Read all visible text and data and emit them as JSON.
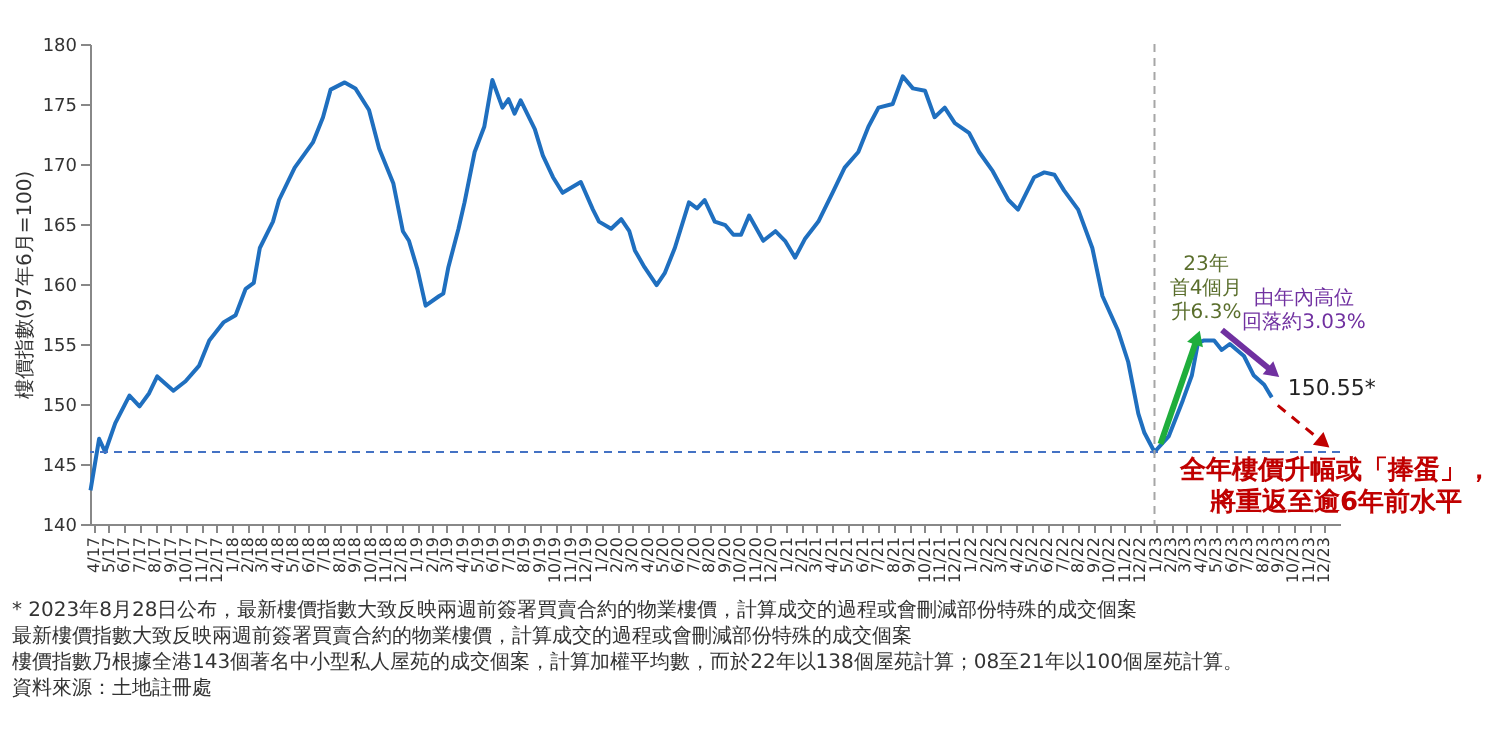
{
  "chart_data": {
    "type": "line",
    "ylabel": "樓價指數(97年6月=100)",
    "x": [
      "2017-03-26",
      "2017-04-12",
      "2017-04-24",
      "2017-05-14",
      "2017-06-11",
      "2017-07-01",
      "2017-07-20",
      "2017-08-05",
      "2017-09-06",
      "2017-09-30",
      "2017-10-27",
      "2017-11-16",
      "2017-12-14",
      "2018-01-07",
      "2018-01-27",
      "2018-02-12",
      "2018-02-24",
      "2018-03-22",
      "2018-04-03",
      "2018-05-04",
      "2018-06-09",
      "2018-06-29",
      "2018-07-14",
      "2018-08-11",
      "2018-09-01",
      "2018-09-28",
      "2018-10-18",
      "2018-11-15",
      "2018-12-04",
      "2018-12-16",
      "2019-01-02",
      "2019-01-18",
      "2019-02-14",
      "2019-02-22",
      "2019-03-04",
      "2019-03-24",
      "2019-04-05",
      "2019-04-25",
      "2019-05-14",
      "2019-05-30",
      "2019-06-19",
      "2019-07-01",
      "2019-07-13",
      "2019-07-25",
      "2019-08-22",
      "2019-09-07",
      "2019-09-27",
      "2019-10-16",
      "2019-11-21",
      "2019-12-15",
      "2019-12-27",
      "2020-01-20",
      "2020-02-09",
      "2020-02-25",
      "2020-03-07",
      "2020-03-26",
      "2020-04-19",
      "2020-05-05",
      "2020-05-25",
      "2020-06-22",
      "2020-07-08",
      "2020-07-23",
      "2020-08-12",
      "2020-09-02",
      "2020-09-18",
      "2020-10-03",
      "2020-10-19",
      "2020-11-16",
      "2020-12-10",
      "2020-12-29",
      "2021-01-18",
      "2021-02-07",
      "2021-03-05",
      "2021-04-02",
      "2021-04-26",
      "2021-05-23",
      "2021-06-12",
      "2021-07-02",
      "2021-07-30",
      "2021-08-19",
      "2021-09-08",
      "2021-10-02",
      "2021-10-21",
      "2021-11-10",
      "2021-11-30",
      "2021-12-28",
      "2022-01-17",
      "2022-02-13",
      "2022-03-16",
      "2022-04-04",
      "2022-05-06",
      "2022-05-26",
      "2022-06-15",
      "2022-07-04",
      "2022-08-01",
      "2022-08-29",
      "2022-09-18",
      "2022-10-19",
      "2022-11-08",
      "2022-11-28",
      "2022-12-10",
      "2022-12-30",
      "2023-01-27",
      "2023-02-24",
      "2023-03-14",
      "2023-03-26",
      "2023-04-07",
      "2023-04-27",
      "2023-05-12",
      "2023-05-28",
      "2023-06-25",
      "2023-07-14",
      "2023-08-04",
      "2023-08-19"
    ],
    "series": [
      {
        "color": "#1f6fbf",
        "values": [
          142.8,
          147.1,
          146.0,
          148.4,
          150.7,
          149.8,
          150.9,
          152.3,
          151.1,
          151.9,
          153.2,
          155.3,
          156.8,
          157.4,
          159.6,
          160.1,
          163.0,
          165.2,
          167.0,
          169.7,
          171.8,
          173.9,
          176.2,
          176.8,
          176.3,
          174.5,
          171.3,
          168.4,
          164.4,
          163.6,
          161.2,
          158.2,
          159.0,
          159.2,
          161.4,
          164.6,
          166.8,
          171.0,
          173.1,
          177.0,
          174.7,
          175.4,
          174.2,
          175.3,
          172.9,
          170.7,
          168.9,
          167.6,
          168.5,
          166.2,
          165.2,
          164.6,
          165.4,
          164.4,
          162.8,
          161.4,
          159.9,
          160.9,
          163.0,
          166.8,
          166.3,
          167.0,
          165.2,
          164.9,
          164.1,
          164.1,
          165.7,
          163.6,
          164.4,
          163.6,
          162.2,
          163.8,
          165.2,
          167.6,
          169.7,
          171.0,
          173.1,
          174.7,
          175.0,
          177.3,
          176.3,
          176.1,
          173.9,
          174.7,
          173.4,
          172.6,
          171.0,
          169.4,
          167.0,
          166.2,
          168.9,
          169.3,
          169.1,
          167.8,
          166.2,
          163.0,
          159.0,
          156.1,
          153.5,
          149.2,
          147.6,
          146.0,
          147.3,
          150.3,
          152.4,
          155.1,
          155.3,
          155.3,
          154.5,
          155.0,
          154.0,
          152.4,
          151.6,
          150.55
        ]
      }
    ],
    "xlim": [
      "2017-03-25",
      "2024-01-01"
    ],
    "xticks": [
      {
        "value": "2017-04-01",
        "label": "4/17"
      },
      {
        "value": "2017-05-01",
        "label": "5/17"
      },
      {
        "value": "2017-06-01",
        "label": "6/17"
      },
      {
        "value": "2017-07-01",
        "label": "7/17"
      },
      {
        "value": "2017-08-01",
        "label": "8/17"
      },
      {
        "value": "2017-09-01",
        "label": "9/17"
      },
      {
        "value": "2017-10-01",
        "label": "10/17"
      },
      {
        "value": "2017-11-01",
        "label": "11/17"
      },
      {
        "value": "2017-12-01",
        "label": "12/17"
      },
      {
        "value": "2018-01-01",
        "label": "1/18"
      },
      {
        "value": "2018-02-01",
        "label": "2/18"
      },
      {
        "value": "2018-03-01",
        "label": "3/18"
      },
      {
        "value": "2018-04-01",
        "label": "4/18"
      },
      {
        "value": "2018-05-01",
        "label": "5/18"
      },
      {
        "value": "2018-06-01",
        "label": "6/18"
      },
      {
        "value": "2018-07-01",
        "label": "7/18"
      },
      {
        "value": "2018-08-01",
        "label": "8/18"
      },
      {
        "value": "2018-09-01",
        "label": "9/18"
      },
      {
        "value": "2018-10-01",
        "label": "10/18"
      },
      {
        "value": "2018-11-01",
        "label": "11/18"
      },
      {
        "value": "2018-12-01",
        "label": "12/18"
      },
      {
        "value": "2019-01-01",
        "label": "1/19"
      },
      {
        "value": "2019-02-01",
        "label": "2/19"
      },
      {
        "value": "2019-03-01",
        "label": "3/19"
      },
      {
        "value": "2019-04-01",
        "label": "4/19"
      },
      {
        "value": "2019-05-01",
        "label": "5/19"
      },
      {
        "value": "2019-06-01",
        "label": "6/19"
      },
      {
        "value": "2019-07-01",
        "label": "7/19"
      },
      {
        "value": "2019-08-01",
        "label": "8/19"
      },
      {
        "value": "2019-09-01",
        "label": "9/19"
      },
      {
        "value": "2019-10-01",
        "label": "10/19"
      },
      {
        "value": "2019-11-01",
        "label": "11/19"
      },
      {
        "value": "2019-12-01",
        "label": "12/19"
      },
      {
        "value": "2020-01-01",
        "label": "1/20"
      },
      {
        "value": "2020-02-01",
        "label": "2/20"
      },
      {
        "value": "2020-03-01",
        "label": "3/20"
      },
      {
        "value": "2020-04-01",
        "label": "4/20"
      },
      {
        "value": "2020-05-01",
        "label": "5/20"
      },
      {
        "value": "2020-06-01",
        "label": "6/20"
      },
      {
        "value": "2020-07-01",
        "label": "7/20"
      },
      {
        "value": "2020-08-01",
        "label": "8/20"
      },
      {
        "value": "2020-09-01",
        "label": "9/20"
      },
      {
        "value": "2020-10-01",
        "label": "10/20"
      },
      {
        "value": "2020-11-01",
        "label": "11/20"
      },
      {
        "value": "2020-12-01",
        "label": "12/20"
      },
      {
        "value": "2021-01-01",
        "label": "1/21"
      },
      {
        "value": "2021-02-01",
        "label": "2/21"
      },
      {
        "value": "2021-03-01",
        "label": "3/21"
      },
      {
        "value": "2021-04-01",
        "label": "4/21"
      },
      {
        "value": "2021-05-01",
        "label": "5/21"
      },
      {
        "value": "2021-06-01",
        "label": "6/21"
      },
      {
        "value": "2021-07-01",
        "label": "7/21"
      },
      {
        "value": "2021-08-01",
        "label": "8/21"
      },
      {
        "value": "2021-09-01",
        "label": "9/21"
      },
      {
        "value": "2021-10-01",
        "label": "10/21"
      },
      {
        "value": "2021-11-01",
        "label": "11/21"
      },
      {
        "value": "2021-12-01",
        "label": "12/21"
      },
      {
        "value": "2022-01-01",
        "label": "1/22"
      },
      {
        "value": "2022-02-01",
        "label": "2/22"
      },
      {
        "value": "2022-03-01",
        "label": "3/22"
      },
      {
        "value": "2022-04-01",
        "label": "4/22"
      },
      {
        "value": "2022-05-01",
        "label": "5/22"
      },
      {
        "value": "2022-06-01",
        "label": "6/22"
      },
      {
        "value": "2022-07-01",
        "label": "7/22"
      },
      {
        "value": "2022-08-01",
        "label": "8/22"
      },
      {
        "value": "2022-09-01",
        "label": "9/22"
      },
      {
        "value": "2022-10-01",
        "label": "10/22"
      },
      {
        "value": "2022-11-01",
        "label": "11/22"
      },
      {
        "value": "2022-12-01",
        "label": "12/22"
      },
      {
        "value": "2023-01-01",
        "label": "1/23"
      },
      {
        "value": "2023-02-01",
        "label": "2/23"
      },
      {
        "value": "2023-03-01",
        "label": "3/23"
      },
      {
        "value": "2023-04-01",
        "label": "4/23"
      },
      {
        "value": "2023-05-01",
        "label": "5/23"
      },
      {
        "value": "2023-06-01",
        "label": "6/23"
      },
      {
        "value": "2023-07-01",
        "label": "7/23"
      },
      {
        "value": "2023-08-01",
        "label": "8/23"
      },
      {
        "value": "2023-09-01",
        "label": "9/23"
      },
      {
        "value": "2023-10-01",
        "label": "10/23"
      },
      {
        "value": "2023-11-01",
        "label": "11/23"
      },
      {
        "value": "2023-12-01",
        "label": "12/23"
      }
    ],
    "ylim": [
      140,
      180
    ],
    "yticks": [
      140,
      145,
      150,
      155,
      160,
      165,
      170,
      175,
      180
    ],
    "grid": false,
    "marker": "none",
    "line_style": "solid",
    "ref_lines": [
      {
        "axis": "y",
        "value": 146,
        "color": "#4472c4",
        "line_style": "dashed"
      },
      {
        "axis": "x",
        "value": "2022-12-30",
        "color": "#a6a6a6",
        "line_style": "dashed"
      }
    ],
    "annotations": [
      {
        "text": "150.55*",
        "x": "2023-08-19",
        "y": 150.55
      },
      "23年",
      "首4個月",
      "升6.3%",
      "由年內高位",
      "回落約3.03%",
      "全年樓價升幅或「捧蛋」，",
      "將重返至逾6年前水平",
      "* 2023年8月28日公布，最新樓價指數大致反映兩週前簽署買賣合約的物業樓價，計算成交的過程或會刪減部份特殊的成交個案",
      "最新樓價指數大致反映兩週前簽署買賣合約的物業樓價，計算成交的過程或會刪減部份特殊的成交個案",
      "樓價指數乃根據全港143個著名中小型私人屋苑的成交個案，計算加權平均數，而於22年以138個屋苑計算；08至21年以100個屋苑計算。",
      "資料來源：土地註冊處"
    ]
  }
}
